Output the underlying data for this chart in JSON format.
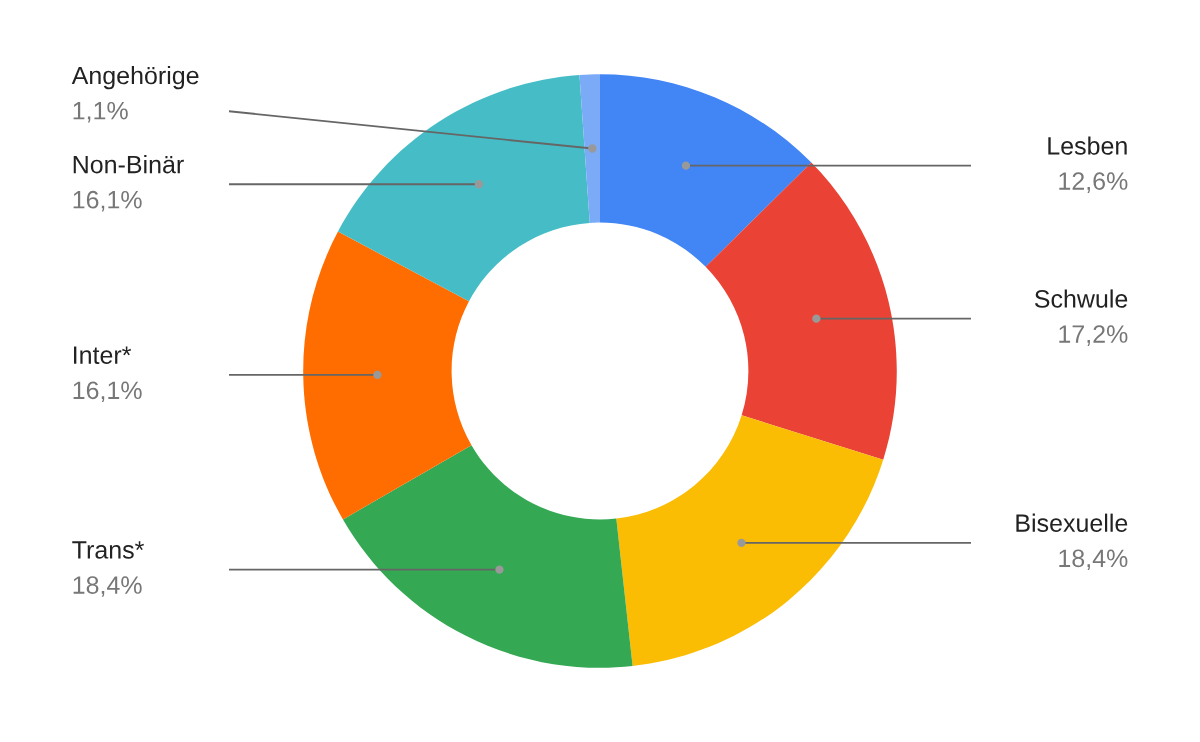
{
  "chart_data": {
    "type": "donut",
    "categories": [
      "Lesben",
      "Schwule",
      "Bisexuelle",
      "Trans*",
      "Inter*",
      "Non-Binär",
      "Angehörige"
    ],
    "values": [
      12.6,
      17.2,
      18.4,
      18.4,
      16.1,
      16.1,
      1.1
    ],
    "value_labels": [
      "12,6%",
      "17,2%",
      "18,4%",
      "18,4%",
      "16,1%",
      "16,1%",
      "1,1%"
    ],
    "colors": [
      "#4285f4",
      "#ea4335",
      "#fbbc04",
      "#34a853",
      "#ff6d01",
      "#46bdc6",
      "#7baaf7"
    ],
    "legend": false
  }
}
